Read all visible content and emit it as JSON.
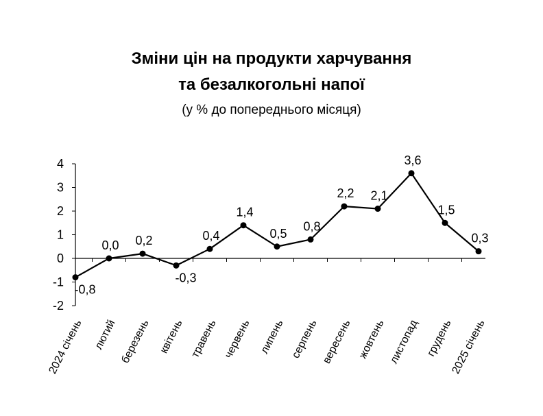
{
  "chart_data": {
    "type": "line",
    "title_line1": "Зміни цін на продукти харчування",
    "title_line2": "та безалкогольні напої",
    "subtitle": "(у % до попереднього місяця)",
    "categories": [
      "2024 січень",
      "лютий",
      "березень",
      "квітень",
      "травень",
      "червень",
      "липень",
      "серпень",
      "вересень",
      "жовтень",
      "листопад",
      "грудень",
      "2025 січень"
    ],
    "values": [
      -0.8,
      0.0,
      0.2,
      -0.3,
      0.4,
      1.4,
      0.5,
      0.8,
      2.2,
      2.1,
      3.6,
      1.5,
      0.3
    ],
    "data_labels": [
      "-0,8",
      "0,0",
      "0,2",
      "-0,3",
      "0,4",
      "1,4",
      "0,5",
      "0,8",
      "2,2",
      "2,1",
      "3,6",
      "1,5",
      "0,3"
    ],
    "y_ticks": [
      "-2",
      "-1",
      "0",
      "1",
      "2",
      "3",
      "4"
    ],
    "ylim": [
      -2,
      4
    ],
    "grid": false,
    "legend": "none",
    "line_color": "#000000",
    "marker_color": "#000000"
  }
}
